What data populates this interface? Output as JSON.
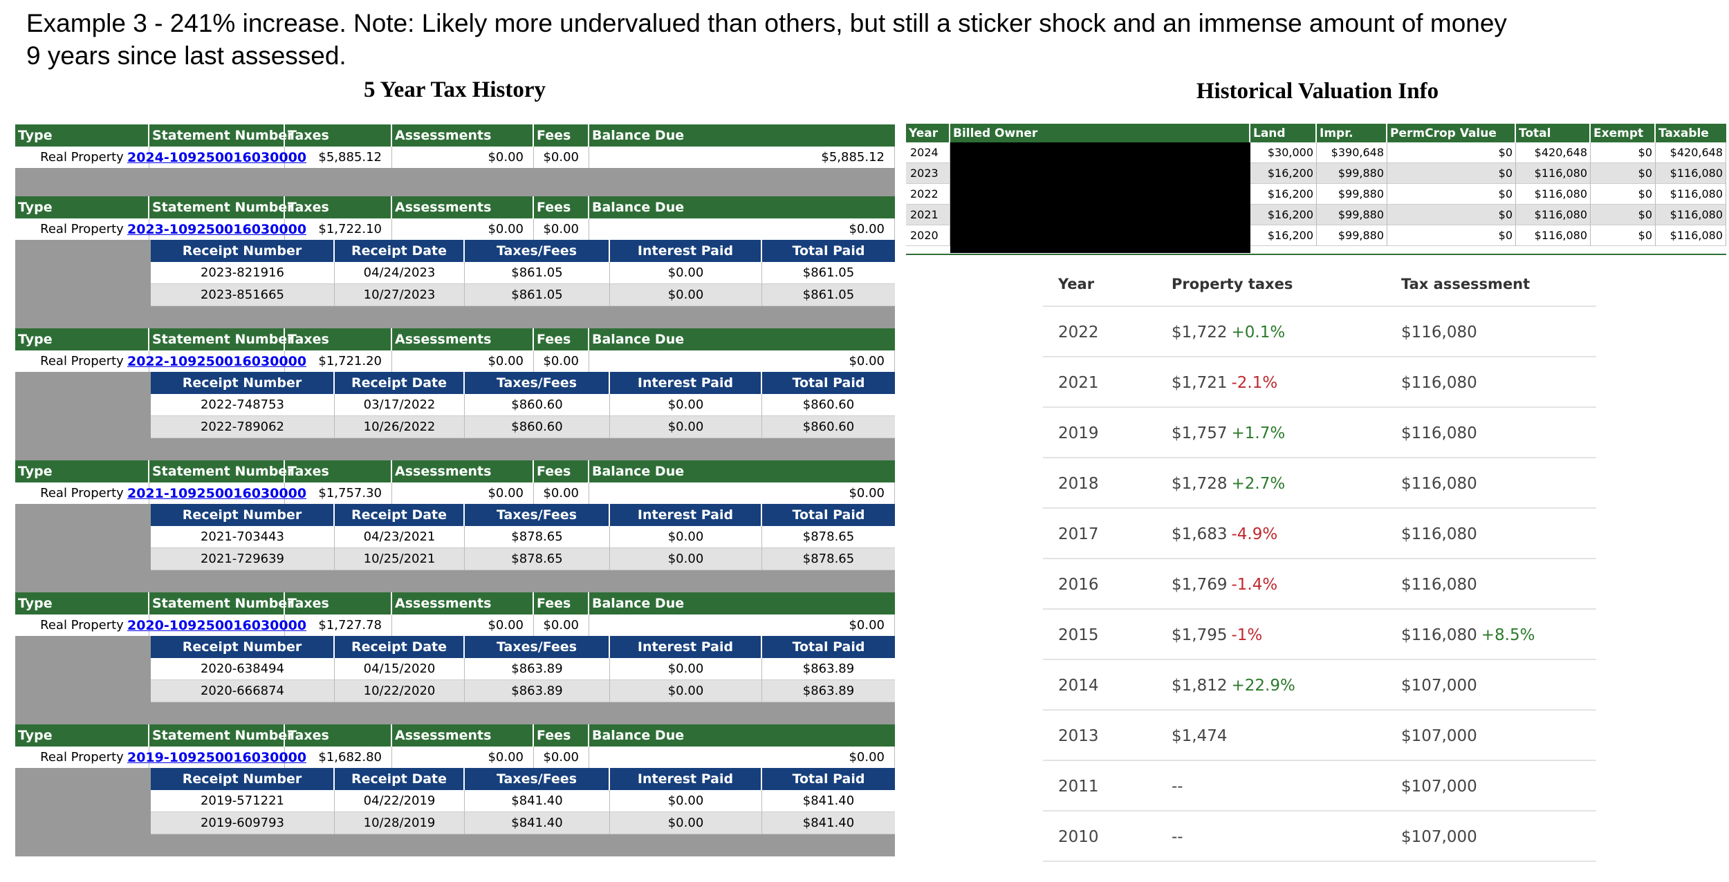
{
  "caption": {
    "line1": "Example 3 - 241% increase. Note: Likely more undervalued than others, but still a sticker shock and an immense amount of money",
    "line2": "9 years since last assessed."
  },
  "left_title": "5 Year Tax History",
  "right_title": "Historical Valuation Info",
  "history": {
    "statement_headers": [
      "Type",
      "Statement Number",
      "Taxes",
      "Assessments",
      "Fees",
      "Balance Due"
    ],
    "receipt_headers": [
      "Receipt Number",
      "Receipt Date",
      "Taxes/Fees",
      "Interest Paid",
      "Total Paid"
    ],
    "statements": [
      {
        "type": "Real Property",
        "number": "2024-109250016030000",
        "taxes": "$5,885.12",
        "assessments": "$0.00",
        "fees": "$0.00",
        "balance": "$5,885.12",
        "receipts": []
      },
      {
        "type": "Real Property",
        "number": "2023-109250016030000",
        "taxes": "$1,722.10",
        "assessments": "$0.00",
        "fees": "$0.00",
        "balance": "$0.00",
        "receipts": [
          {
            "number": "2023-821916",
            "date": "04/24/2023",
            "taxes_fees": "$861.05",
            "interest": "$0.00",
            "total": "$861.05"
          },
          {
            "number": "2023-851665",
            "date": "10/27/2023",
            "taxes_fees": "$861.05",
            "interest": "$0.00",
            "total": "$861.05"
          }
        ]
      },
      {
        "type": "Real Property",
        "number": "2022-109250016030000",
        "taxes": "$1,721.20",
        "assessments": "$0.00",
        "fees": "$0.00",
        "balance": "$0.00",
        "receipts": [
          {
            "number": "2022-748753",
            "date": "03/17/2022",
            "taxes_fees": "$860.60",
            "interest": "$0.00",
            "total": "$860.60"
          },
          {
            "number": "2022-789062",
            "date": "10/26/2022",
            "taxes_fees": "$860.60",
            "interest": "$0.00",
            "total": "$860.60"
          }
        ]
      },
      {
        "type": "Real Property",
        "number": "2021-109250016030000",
        "taxes": "$1,757.30",
        "assessments": "$0.00",
        "fees": "$0.00",
        "balance": "$0.00",
        "receipts": [
          {
            "number": "2021-703443",
            "date": "04/23/2021",
            "taxes_fees": "$878.65",
            "interest": "$0.00",
            "total": "$878.65"
          },
          {
            "number": "2021-729639",
            "date": "10/25/2021",
            "taxes_fees": "$878.65",
            "interest": "$0.00",
            "total": "$878.65"
          }
        ]
      },
      {
        "type": "Real Property",
        "number": "2020-109250016030000",
        "taxes": "$1,727.78",
        "assessments": "$0.00",
        "fees": "$0.00",
        "balance": "$0.00",
        "receipts": [
          {
            "number": "2020-638494",
            "date": "04/15/2020",
            "taxes_fees": "$863.89",
            "interest": "$0.00",
            "total": "$863.89"
          },
          {
            "number": "2020-666874",
            "date": "10/22/2020",
            "taxes_fees": "$863.89",
            "interest": "$0.00",
            "total": "$863.89"
          }
        ]
      },
      {
        "type": "Real Property",
        "number": "2019-109250016030000",
        "taxes": "$1,682.80",
        "assessments": "$0.00",
        "fees": "$0.00",
        "balance": "$0.00",
        "receipts": [
          {
            "number": "2019-571221",
            "date": "04/22/2019",
            "taxes_fees": "$841.40",
            "interest": "$0.00",
            "total": "$841.40"
          },
          {
            "number": "2019-609793",
            "date": "10/28/2019",
            "taxes_fees": "$841.40",
            "interest": "$0.00",
            "total": "$841.40"
          }
        ]
      }
    ]
  },
  "valuation": {
    "headers": [
      "Year",
      "Billed Owner",
      "Land",
      "Impr.",
      "PermCrop Value",
      "Total",
      "Exempt",
      "Taxable"
    ],
    "rows": [
      {
        "year": "2024",
        "land": "$30,000",
        "impr": "$390,648",
        "permcrop": "$0",
        "total": "$420,648",
        "exempt": "$0",
        "taxable": "$420,648"
      },
      {
        "year": "2023",
        "land": "$16,200",
        "impr": "$99,880",
        "permcrop": "$0",
        "total": "$116,080",
        "exempt": "$0",
        "taxable": "$116,080"
      },
      {
        "year": "2022",
        "land": "$16,200",
        "impr": "$99,880",
        "permcrop": "$0",
        "total": "$116,080",
        "exempt": "$0",
        "taxable": "$116,080"
      },
      {
        "year": "2021",
        "land": "$16,200",
        "impr": "$99,880",
        "permcrop": "$0",
        "total": "$116,080",
        "exempt": "$0",
        "taxable": "$116,080"
      },
      {
        "year": "2020",
        "land": "$16,200",
        "impr": "$99,880",
        "permcrop": "$0",
        "total": "$116,080",
        "exempt": "$0",
        "taxable": "$116,080"
      }
    ]
  },
  "property_taxes": {
    "headers": [
      "Year",
      "Property taxes",
      "Tax assessment"
    ],
    "rows": [
      {
        "year": "2022",
        "tax": "$1,722",
        "tax_change": "+0.1%",
        "tax_dir": "up",
        "assessment": "$116,080",
        "assess_change": "",
        "assess_dir": ""
      },
      {
        "year": "2021",
        "tax": "$1,721",
        "tax_change": "-2.1%",
        "tax_dir": "down",
        "assessment": "$116,080",
        "assess_change": "",
        "assess_dir": ""
      },
      {
        "year": "2019",
        "tax": "$1,757",
        "tax_change": "+1.7%",
        "tax_dir": "up",
        "assessment": "$116,080",
        "assess_change": "",
        "assess_dir": ""
      },
      {
        "year": "2018",
        "tax": "$1,728",
        "tax_change": "+2.7%",
        "tax_dir": "up",
        "assessment": "$116,080",
        "assess_change": "",
        "assess_dir": ""
      },
      {
        "year": "2017",
        "tax": "$1,683",
        "tax_change": "-4.9%",
        "tax_dir": "down",
        "assessment": "$116,080",
        "assess_change": "",
        "assess_dir": ""
      },
      {
        "year": "2016",
        "tax": "$1,769",
        "tax_change": "-1.4%",
        "tax_dir": "down",
        "assessment": "$116,080",
        "assess_change": "",
        "assess_dir": ""
      },
      {
        "year": "2015",
        "tax": "$1,795",
        "tax_change": "-1%",
        "tax_dir": "down",
        "assessment": "$116,080",
        "assess_change": "+8.5%",
        "assess_dir": "up"
      },
      {
        "year": "2014",
        "tax": "$1,812",
        "tax_change": "+22.9%",
        "tax_dir": "up",
        "assessment": "$107,000",
        "assess_change": "",
        "assess_dir": ""
      },
      {
        "year": "2013",
        "tax": "$1,474",
        "tax_change": "",
        "tax_dir": "",
        "assessment": "$107,000",
        "assess_change": "",
        "assess_dir": ""
      },
      {
        "year": "2011",
        "tax": "--",
        "tax_change": "",
        "tax_dir": "",
        "assessment": "$107,000",
        "assess_change": "",
        "assess_dir": ""
      },
      {
        "year": "2010",
        "tax": "--",
        "tax_change": "",
        "tax_dir": "",
        "assessment": "$107,000",
        "assess_change": "",
        "assess_dir": ""
      }
    ]
  },
  "colors": {
    "green_header": "#2e6e36",
    "blue_header": "#163f7c",
    "link": "#0000ee",
    "positive": "#2b7a2b",
    "negative": "#c0282d"
  }
}
